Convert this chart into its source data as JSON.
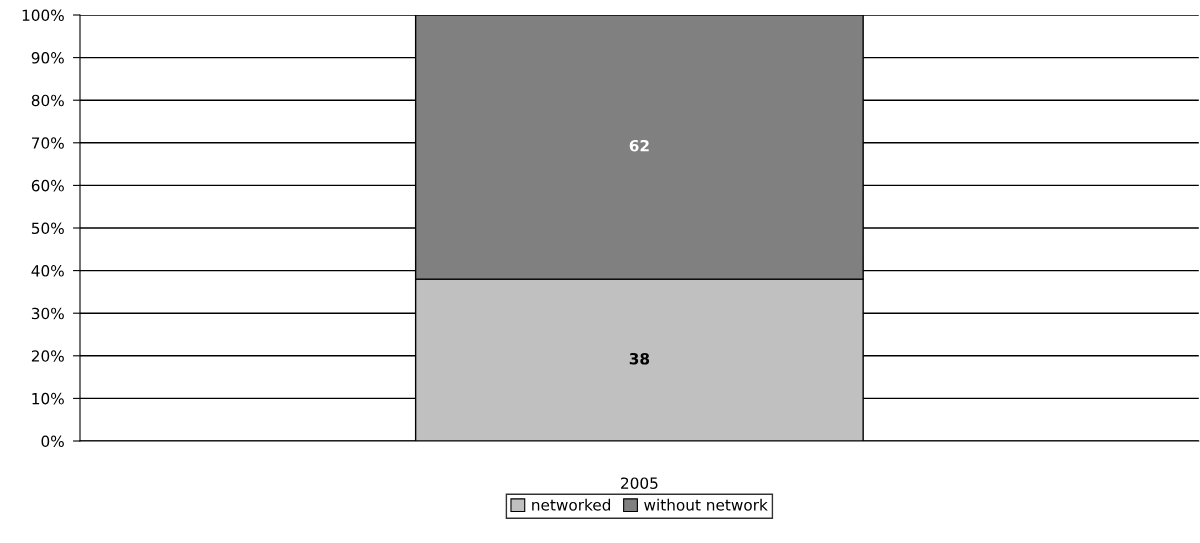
{
  "chart_data": {
    "type": "bar",
    "stacked": true,
    "categories": [
      "2005"
    ],
    "series": [
      {
        "name": "networked",
        "color": "#c0c0c0",
        "values": [
          38
        ]
      },
      {
        "name": "without network",
        "color": "#808080",
        "values": [
          62
        ]
      }
    ],
    "ylim": [
      0,
      100
    ],
    "yticks": [
      {
        "value": 0,
        "label": "0%"
      },
      {
        "value": 10,
        "label": "10%"
      },
      {
        "value": 20,
        "label": "20%"
      },
      {
        "value": 30,
        "label": "30%"
      },
      {
        "value": 40,
        "label": "40%"
      },
      {
        "value": 50,
        "label": "50%"
      },
      {
        "value": 60,
        "label": "60%"
      },
      {
        "value": 70,
        "label": "70%"
      },
      {
        "value": 80,
        "label": "80%"
      },
      {
        "value": 90,
        "label": "90%"
      },
      {
        "value": 100,
        "label": "100%"
      }
    ],
    "grid": "y",
    "legend": "bottom",
    "data_labels": true
  }
}
